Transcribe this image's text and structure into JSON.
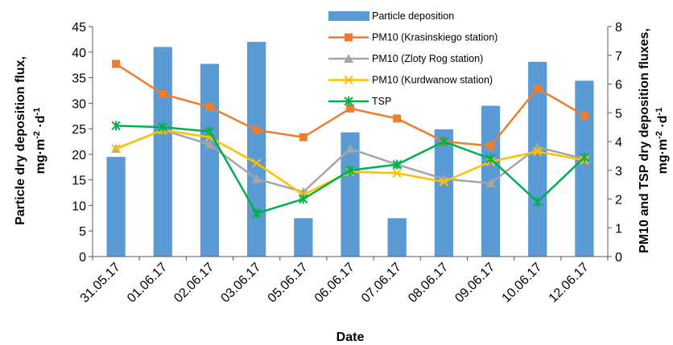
{
  "chart_data": {
    "type": "bar",
    "categories": [
      "31.05.17",
      "01.06.17",
      "02.06.17",
      "03.06.17",
      "05.06.17",
      "06.06.17",
      "07.06.17",
      "08.06.17",
      "09.06.17",
      "10.06.17",
      "12.06.17"
    ],
    "xlabel": "Date",
    "ylabel_left_line1": "Particle dry deposition flux,",
    "ylabel_left_line2": "mg·m",
    "ylabel_left_sup1": "-2",
    "ylabel_left_mid": " ·d",
    "ylabel_left_sup2": "-1",
    "ylabel_right_line1": "PM10 and TSP dry deposition fluxes,",
    "ylabel_right_line2": "mg·m",
    "ylabel_right_sup1": "-2",
    "ylabel_right_mid": " ·d",
    "ylabel_right_sup2": "-1",
    "ylim_left": [
      0,
      45
    ],
    "yticks_left": [
      "0",
      "5",
      "10",
      "15",
      "20",
      "25",
      "30",
      "35",
      "40",
      "45"
    ],
    "ylim_right": [
      0,
      8
    ],
    "yticks_right": [
      "0",
      "1",
      "2",
      "3",
      "4",
      "5",
      "6",
      "7",
      "8"
    ],
    "legend_position": "top-right",
    "grid": false,
    "bars": {
      "name": "Particle deposition",
      "axis": "left",
      "color": "#5B9BD5",
      "values": [
        19.5,
        41.0,
        37.7,
        42.0,
        7.5,
        24.3,
        7.5,
        24.9,
        29.5,
        38.1,
        34.4
      ]
    },
    "series": [
      {
        "name": "PM10 (Krasinskiego station)",
        "axis": "right",
        "color": "#ED7D31",
        "marker": "square",
        "values": [
          6.7,
          5.65,
          5.2,
          4.4,
          4.15,
          5.15,
          4.8,
          4.0,
          3.85,
          5.85,
          4.9
        ]
      },
      {
        "name": "PM10 (Zloty Rog station)",
        "axis": "right",
        "color": "#A5A5A5",
        "marker": "triangle",
        "values": [
          3.75,
          4.4,
          3.9,
          2.7,
          2.25,
          3.75,
          3.2,
          2.7,
          2.55,
          3.8,
          3.4
        ]
      },
      {
        "name": "PM10 (Kurdwanow station)",
        "axis": "right",
        "color": "#FFC000",
        "marker": "x",
        "values": [
          3.75,
          4.4,
          4.15,
          3.25,
          2.15,
          2.95,
          2.9,
          2.6,
          3.3,
          3.65,
          3.35
        ]
      },
      {
        "name": "TSP",
        "axis": "right",
        "color": "#00B050",
        "marker": "star",
        "values": [
          4.55,
          4.5,
          4.35,
          1.5,
          2.0,
          3.0,
          3.2,
          4.0,
          3.4,
          1.9,
          3.45
        ]
      }
    ]
  }
}
